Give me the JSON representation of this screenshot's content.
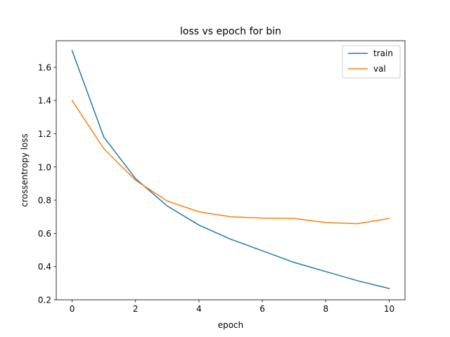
{
  "chart_data": {
    "type": "line",
    "title": "loss vs epoch for bin",
    "xlabel": "epoch",
    "ylabel": "crossentropy loss",
    "xlim": [
      -0.5,
      10.5
    ],
    "ylim": [
      0.2,
      1.76
    ],
    "xticks": [
      0,
      2,
      4,
      6,
      8,
      10
    ],
    "yticks": [
      0.2,
      0.4,
      0.6,
      0.8,
      1.0,
      1.2,
      1.4,
      1.6
    ],
    "xtick_labels": [
      "0",
      "2",
      "4",
      "6",
      "8",
      "10"
    ],
    "ytick_labels": [
      "0.2",
      "0.4",
      "0.6",
      "0.8",
      "1.0",
      "1.2",
      "1.4",
      "1.6"
    ],
    "grid": false,
    "legend_position": "top-right",
    "x": [
      0,
      1,
      2,
      3,
      4,
      5,
      6,
      7,
      8,
      9,
      10
    ],
    "series": [
      {
        "name": "train",
        "color": "#1f77b4",
        "values": [
          1.7,
          1.18,
          0.93,
          0.765,
          0.65,
          0.565,
          0.495,
          0.425,
          0.37,
          0.315,
          0.268
        ]
      },
      {
        "name": "val",
        "color": "#ff7f0e",
        "values": [
          1.4,
          1.11,
          0.92,
          0.795,
          0.73,
          0.7,
          0.692,
          0.69,
          0.665,
          0.658,
          0.69
        ]
      }
    ]
  }
}
